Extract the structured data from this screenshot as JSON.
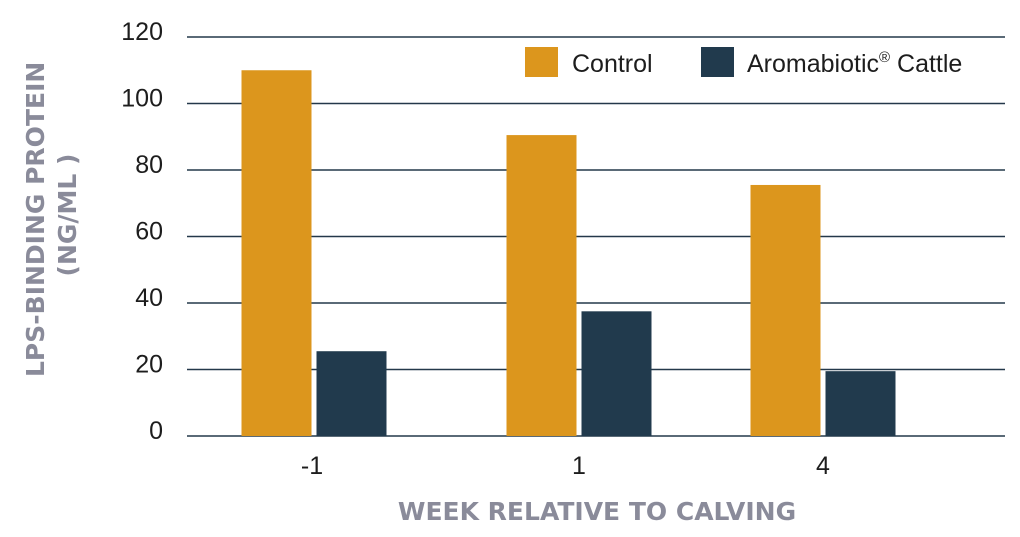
{
  "chart_data": {
    "type": "bar",
    "categories": [
      "-1",
      "1",
      "4"
    ],
    "series": [
      {
        "name": "Control",
        "values": [
          110,
          90.5,
          75.5
        ],
        "color": "#dc961d"
      },
      {
        "name": "Aromabiotic",
        "name_suffix": "®",
        "name_tail": " Cattle",
        "values": [
          25.5,
          37.5,
          19.5
        ],
        "color": "#213a4d"
      }
    ],
    "xlabel": "WEEK RELATIVE TO CALVING",
    "ylabel_lines": [
      "LPS-BINDING PROTEIN",
      "(NG/ML )"
    ],
    "ylim": [
      0,
      120
    ],
    "yticks": [
      "0",
      "20",
      "40",
      "60",
      "80",
      "100",
      "120"
    ],
    "grid": true,
    "legend_position": "top-right"
  }
}
